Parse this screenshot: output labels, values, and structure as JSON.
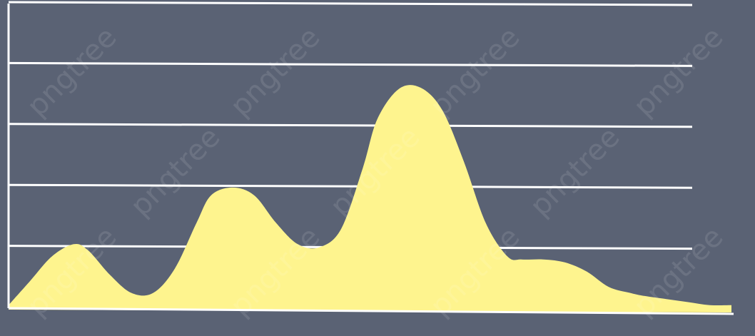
{
  "colors": {
    "background": "#5a6274",
    "gridline": "#ffffff",
    "axis": "#ffffff",
    "area_fill": "#fef48e"
  },
  "watermark": {
    "text": "pngtree"
  },
  "chart_data": {
    "type": "area",
    "title": "",
    "xlabel": "",
    "ylabel": "",
    "grid": true,
    "legend": "none",
    "xlim": [
      0,
      100
    ],
    "ylim": [
      0,
      5
    ],
    "gridlines_y": [
      1,
      2,
      3,
      4,
      5
    ],
    "series": [
      {
        "x": [
          0,
          3,
          6,
          9,
          11,
          14,
          17,
          20,
          23,
          26,
          28,
          31,
          34,
          37,
          40,
          43,
          46,
          49,
          51,
          54,
          57,
          60,
          63,
          66,
          69,
          71,
          74,
          77,
          80,
          83,
          86,
          88,
          91,
          94,
          97,
          100
        ],
        "values": [
          0.05,
          0.45,
          0.85,
          1.05,
          0.95,
          0.55,
          0.25,
          0.25,
          0.65,
          1.4,
          1.85,
          1.98,
          1.85,
          1.4,
          1.05,
          1.0,
          1.3,
          2.3,
          3.1,
          3.6,
          3.62,
          3.25,
          2.4,
          1.4,
          0.85,
          0.8,
          0.8,
          0.75,
          0.6,
          0.35,
          0.25,
          0.2,
          0.15,
          0.1,
          0.05,
          0.05
        ]
      }
    ]
  }
}
